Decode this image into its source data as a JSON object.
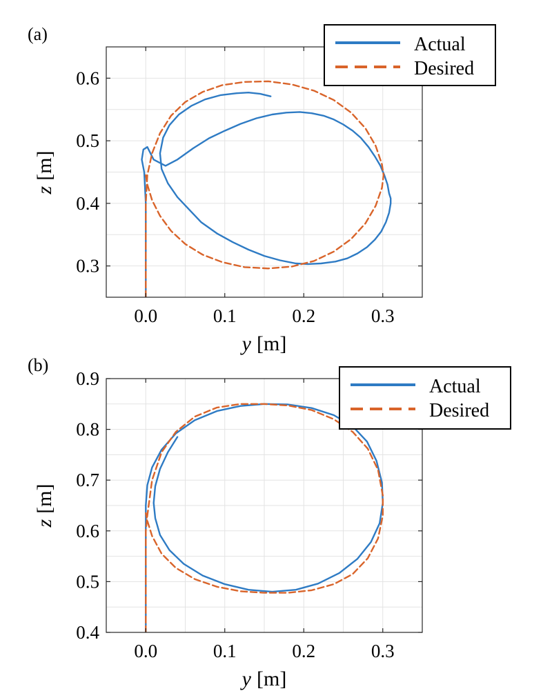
{
  "chart_data": [
    {
      "panel": "(a)",
      "type": "line",
      "xlabel": {
        "var": "y",
        "unit": "[m]"
      },
      "ylabel": {
        "var": "z",
        "unit": "[m]"
      },
      "xlim": [
        -0.05,
        0.35
      ],
      "ylim": [
        0.25,
        0.65
      ],
      "xticks": [
        0.0,
        0.1,
        0.2,
        0.3
      ],
      "xtick_labels": [
        "0.0",
        "0.1",
        "0.2",
        "0.3"
      ],
      "yticks": [
        0.3,
        0.4,
        0.5,
        0.6
      ],
      "ytick_labels": [
        "0.3",
        "0.4",
        "0.5",
        "0.6"
      ],
      "grid": true,
      "legend": {
        "placement": "top-right",
        "entries": [
          "Actual",
          "Desired"
        ]
      },
      "series": [
        {
          "name": "Actual",
          "color": "#2e7bc4",
          "style": "solid",
          "x": [
            0.0,
            0.0,
            0.0,
            -0.002,
            -0.005,
            -0.003,
            0.002,
            0.01,
            0.025,
            0.04,
            0.06,
            0.08,
            0.1,
            0.12,
            0.14,
            0.16,
            0.178,
            0.195,
            0.21,
            0.225,
            0.238,
            0.25,
            0.262,
            0.272,
            0.282,
            0.29,
            0.297,
            0.302,
            0.306,
            0.308,
            0.31,
            0.31,
            0.308,
            0.304,
            0.298,
            0.29,
            0.28,
            0.268,
            0.255,
            0.24,
            0.222,
            0.205,
            0.19,
            0.17,
            0.15,
            0.13,
            0.11,
            0.09,
            0.07,
            0.055,
            0.04,
            0.028,
            0.02,
            0.018,
            0.022,
            0.03,
            0.042,
            0.058,
            0.075,
            0.095,
            0.115,
            0.13,
            0.145,
            0.158
          ],
          "y": [
            0.25,
            0.3,
            0.4,
            0.45,
            0.47,
            0.486,
            0.49,
            0.47,
            0.46,
            0.47,
            0.488,
            0.504,
            0.516,
            0.527,
            0.536,
            0.542,
            0.545,
            0.546,
            0.544,
            0.54,
            0.534,
            0.526,
            0.516,
            0.505,
            0.49,
            0.475,
            0.46,
            0.445,
            0.43,
            0.416,
            0.408,
            0.4,
            0.385,
            0.37,
            0.355,
            0.342,
            0.33,
            0.32,
            0.312,
            0.307,
            0.304,
            0.303,
            0.304,
            0.309,
            0.316,
            0.326,
            0.338,
            0.352,
            0.37,
            0.39,
            0.41,
            0.432,
            0.455,
            0.48,
            0.505,
            0.525,
            0.542,
            0.556,
            0.566,
            0.573,
            0.576,
            0.577,
            0.575,
            0.571
          ]
        },
        {
          "name": "Desired",
          "color": "#d9642a",
          "style": "dashed",
          "x": [
            0.0,
            0.0,
            0.0,
            0.002,
            0.008,
            0.018,
            0.032,
            0.05,
            0.072,
            0.097,
            0.125,
            0.155,
            0.185,
            0.213,
            0.238,
            0.26,
            0.278,
            0.291,
            0.299,
            0.301,
            0.299,
            0.291,
            0.278,
            0.26,
            0.238,
            0.213,
            0.185,
            0.155,
            0.125,
            0.097,
            0.072,
            0.05,
            0.032,
            0.018,
            0.008,
            0.002,
            0.0
          ],
          "y": [
            0.25,
            0.32,
            0.4,
            0.445,
            0.48,
            0.512,
            0.54,
            0.562,
            0.578,
            0.589,
            0.594,
            0.595,
            0.59,
            0.58,
            0.565,
            0.545,
            0.52,
            0.492,
            0.462,
            0.445,
            0.425,
            0.396,
            0.368,
            0.343,
            0.323,
            0.308,
            0.299,
            0.296,
            0.298,
            0.306,
            0.318,
            0.335,
            0.356,
            0.38,
            0.405,
            0.43,
            0.445
          ]
        }
      ]
    },
    {
      "panel": "(b)",
      "type": "line",
      "xlabel": {
        "var": "y",
        "unit": "[m]"
      },
      "ylabel": {
        "var": "z",
        "unit": "[m]"
      },
      "xlim": [
        -0.05,
        0.35
      ],
      "ylim": [
        0.4,
        0.9
      ],
      "xticks": [
        0.0,
        0.1,
        0.2,
        0.3
      ],
      "xtick_labels": [
        "0.0",
        "0.1",
        "0.2",
        "0.3"
      ],
      "yticks": [
        0.4,
        0.5,
        0.6,
        0.7,
        0.8,
        0.9
      ],
      "ytick_labels": [
        "0.4",
        "0.5",
        "0.6",
        "0.7",
        "0.8",
        "0.9"
      ],
      "grid": true,
      "legend": {
        "placement": "top-right",
        "entries": [
          "Actual",
          "Desired"
        ]
      },
      "series": [
        {
          "name": "Actual",
          "color": "#2e7bc4",
          "style": "solid",
          "x": [
            0.0,
            0.0,
            0.0,
            0.002,
            0.008,
            0.02,
            0.038,
            0.062,
            0.09,
            0.12,
            0.15,
            0.18,
            0.21,
            0.238,
            0.262,
            0.28,
            0.292,
            0.299,
            0.3,
            0.296,
            0.285,
            0.268,
            0.245,
            0.218,
            0.19,
            0.16,
            0.13,
            0.1,
            0.072,
            0.048,
            0.03,
            0.018,
            0.012,
            0.01,
            0.012,
            0.018,
            0.028,
            0.04
          ],
          "y": [
            0.4,
            0.55,
            0.65,
            0.69,
            0.725,
            0.76,
            0.792,
            0.818,
            0.836,
            0.846,
            0.85,
            0.849,
            0.842,
            0.828,
            0.806,
            0.776,
            0.738,
            0.695,
            0.655,
            0.615,
            0.578,
            0.545,
            0.517,
            0.496,
            0.484,
            0.48,
            0.484,
            0.495,
            0.512,
            0.535,
            0.562,
            0.592,
            0.625,
            0.655,
            0.688,
            0.722,
            0.755,
            0.785
          ]
        },
        {
          "name": "Desired",
          "color": "#d9642a",
          "style": "dashed",
          "x": [
            0.0,
            0.0,
            0.0,
            0.002,
            0.008,
            0.02,
            0.038,
            0.062,
            0.09,
            0.12,
            0.15,
            0.18,
            0.21,
            0.238,
            0.262,
            0.281,
            0.294,
            0.3,
            0.3,
            0.294,
            0.281,
            0.262,
            0.238,
            0.21,
            0.18,
            0.15,
            0.12,
            0.09,
            0.062,
            0.038,
            0.02,
            0.008,
            0.002,
            0.0
          ],
          "y": [
            0.4,
            0.52,
            0.6,
            0.63,
            0.7,
            0.755,
            0.795,
            0.825,
            0.843,
            0.85,
            0.85,
            0.847,
            0.838,
            0.82,
            0.795,
            0.762,
            0.72,
            0.67,
            0.63,
            0.585,
            0.546,
            0.515,
            0.495,
            0.483,
            0.478,
            0.478,
            0.481,
            0.49,
            0.505,
            0.527,
            0.555,
            0.59,
            0.62,
            0.635
          ]
        }
      ]
    }
  ]
}
